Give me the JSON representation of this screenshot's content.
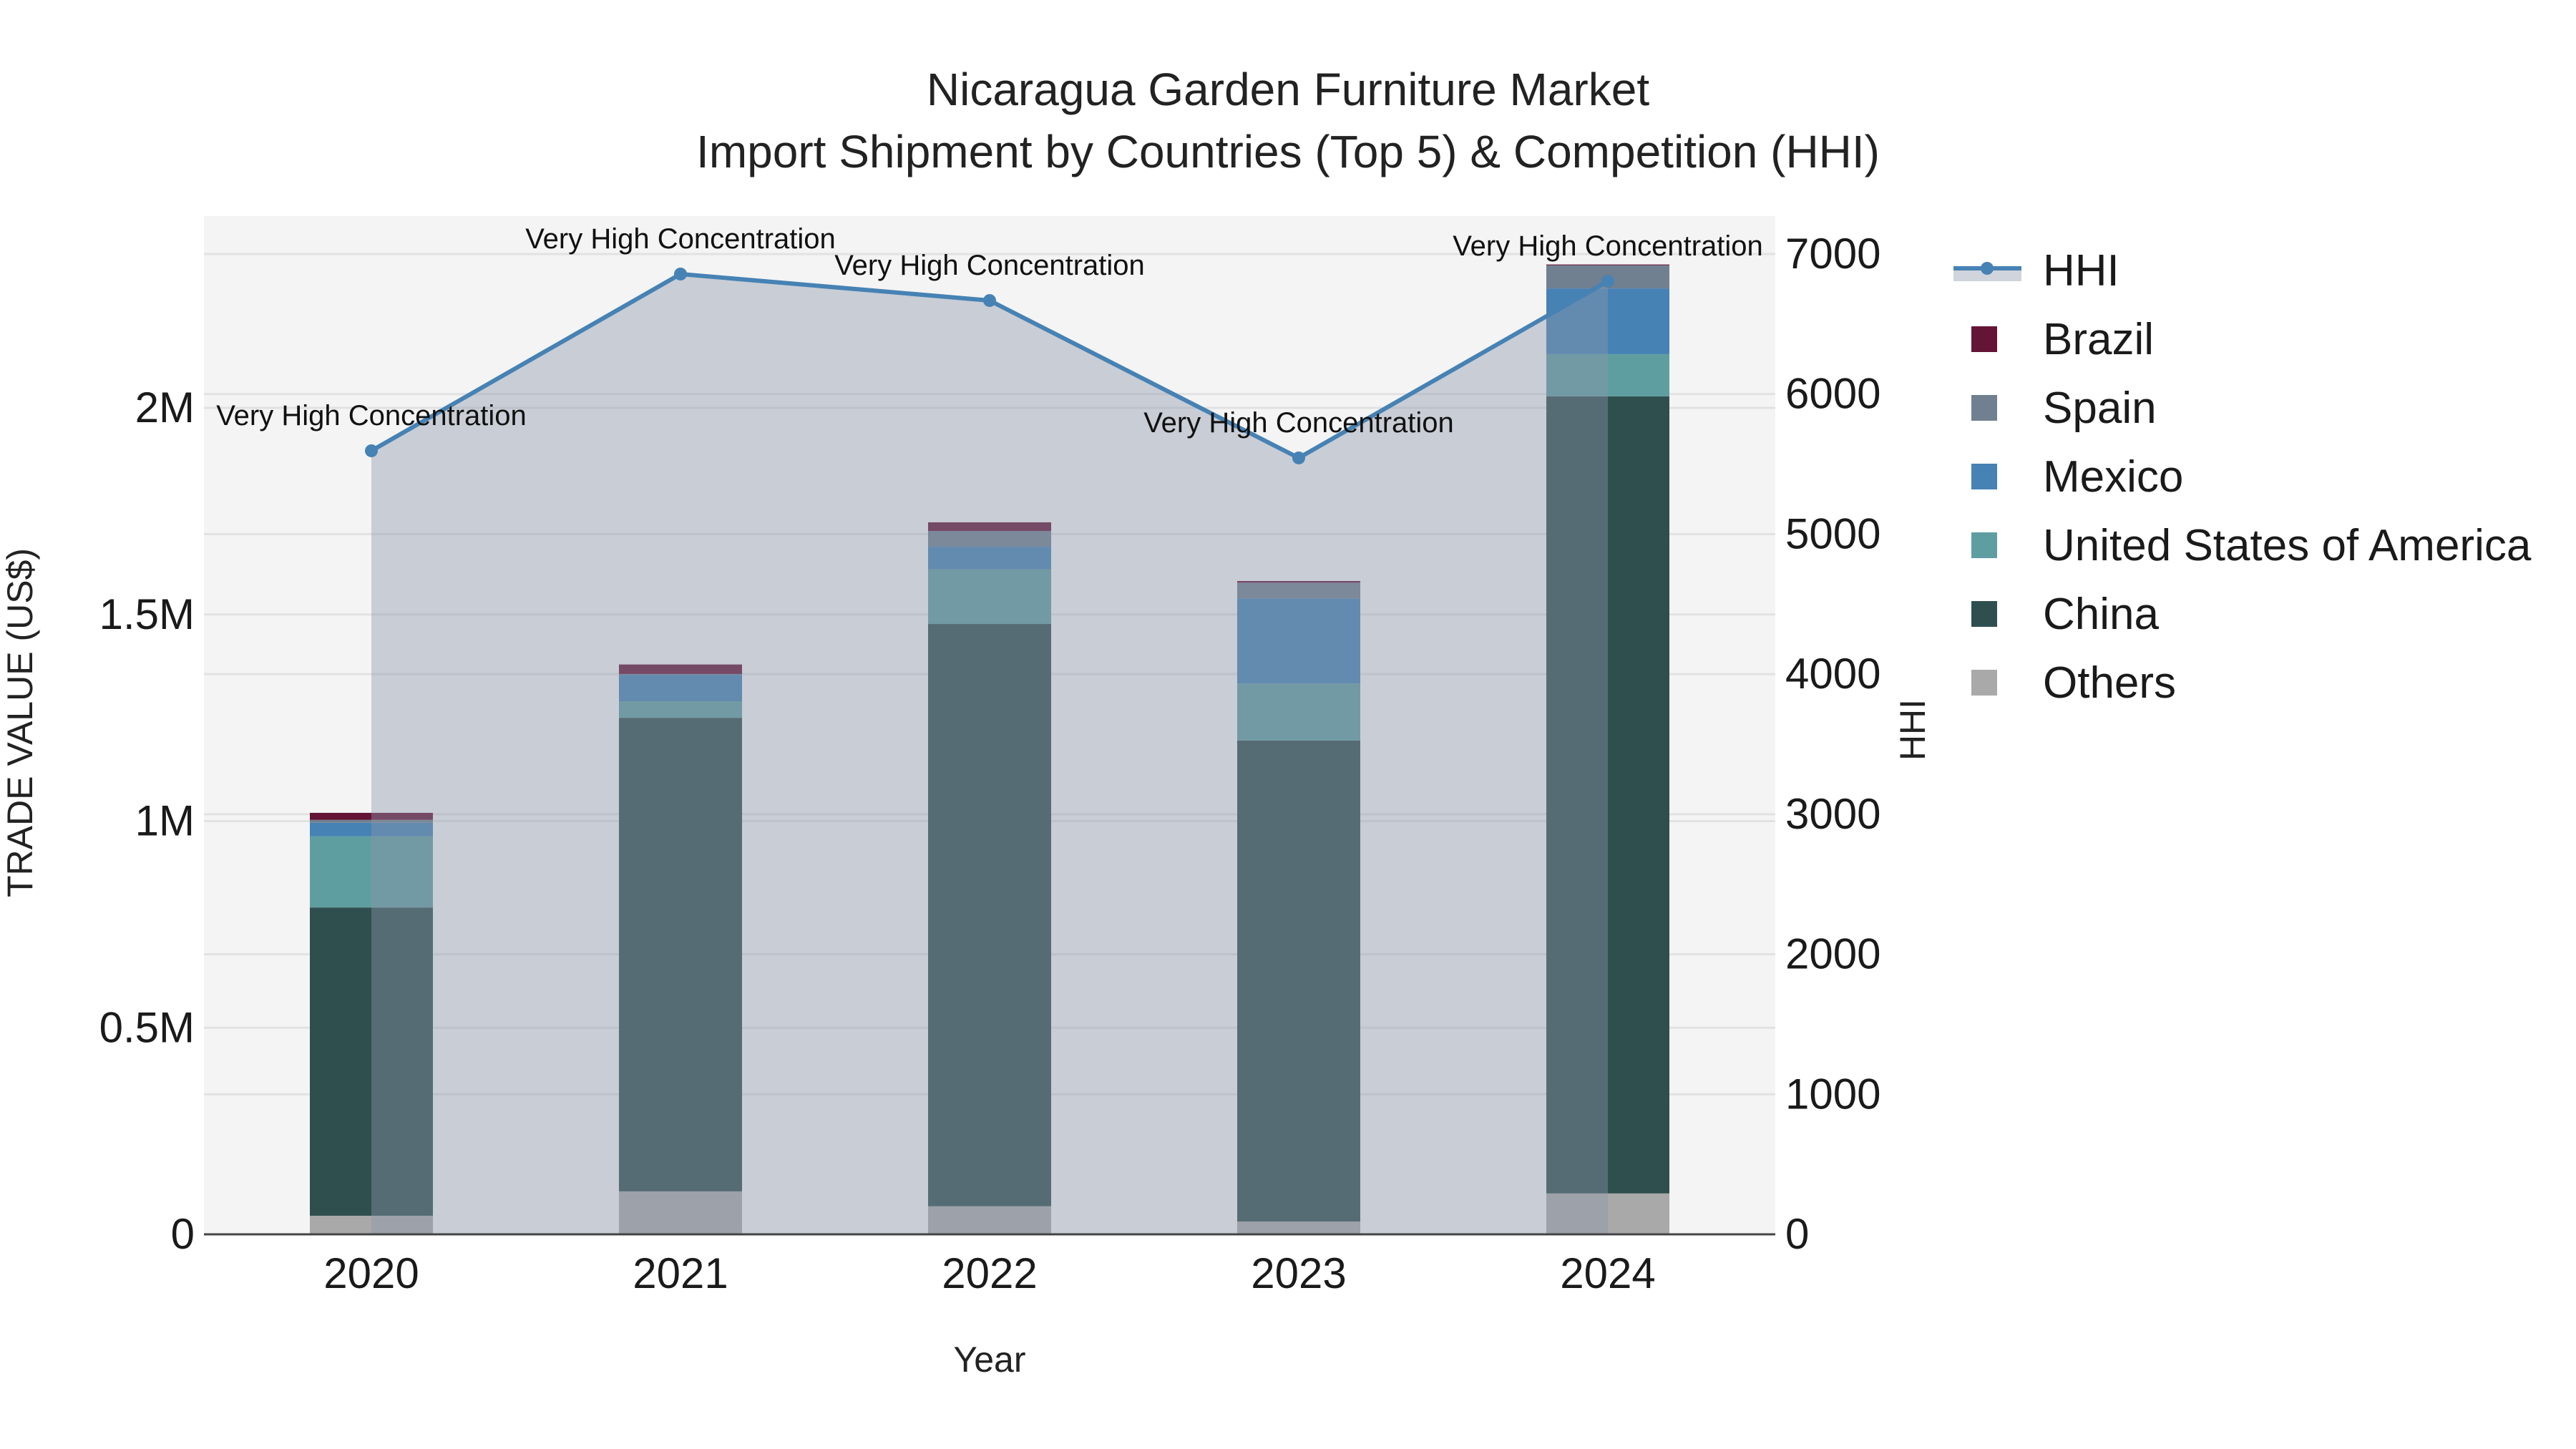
{
  "title": {
    "line1": "Nicaragua Garden Furniture Market",
    "line2": "Import Shipment by Countries (Top 5) & Competition (HHI)"
  },
  "axes": {
    "x_title": "Year",
    "y_left_title": "TRADE VALUE (US$)",
    "y_right_title": "HHI",
    "y_left_ticks": [
      "0",
      "0.5M",
      "1M",
      "1.5M",
      "2M"
    ],
    "y_right_ticks": [
      "0",
      "1000",
      "2000",
      "3000",
      "4000",
      "5000",
      "6000",
      "7000"
    ],
    "x_ticks": [
      "2020",
      "2021",
      "2022",
      "2023",
      "2024"
    ]
  },
  "legend": [
    {
      "name": "HHI",
      "type": "line",
      "color": "#4682b4"
    },
    {
      "name": "Brazil",
      "type": "bar",
      "color": "#641436"
    },
    {
      "name": "Spain",
      "type": "bar",
      "color": "#708090"
    },
    {
      "name": "Mexico",
      "type": "bar",
      "color": "#4682b4"
    },
    {
      "name": "United States of America",
      "type": "bar",
      "color": "#5f9ea0"
    },
    {
      "name": "China",
      "type": "bar",
      "color": "#2f4f4f"
    },
    {
      "name": "Others",
      "type": "bar",
      "color": "#a9a9a9"
    }
  ],
  "colors": {
    "plot_bg": "#f4f4f4",
    "hhi_fill": "#c8ccd4",
    "hhi_line": "#4682b4",
    "grid": "#e2e2e2",
    "axis_line": "#444444"
  },
  "chart_data": {
    "type": "bar",
    "stacked": true,
    "title": "Nicaragua Garden Furniture Market — Import Shipment by Countries (Top 5) & Competition (HHI)",
    "xlabel": "Year",
    "ylabel": "TRADE VALUE (US$)",
    "y2label": "HHI",
    "categories": [
      "2020",
      "2021",
      "2022",
      "2023",
      "2024"
    ],
    "ylim": [
      0,
      2400000
    ],
    "y2lim": [
      0,
      7200
    ],
    "series": [
      {
        "name": "Others",
        "color": "#a9a9a9",
        "values": [
          45000,
          104000,
          68000,
          31000,
          99000
        ]
      },
      {
        "name": "China",
        "color": "#2f4f4f",
        "values": [
          746000,
          1146000,
          1409000,
          1164000,
          1929000
        ]
      },
      {
        "name": "United States of America",
        "color": "#5f9ea0",
        "values": [
          172000,
          40000,
          132000,
          138000,
          102000
        ]
      },
      {
        "name": "Mexico",
        "color": "#4682b4",
        "values": [
          33000,
          64000,
          55000,
          206000,
          159000
        ]
      },
      {
        "name": "Spain",
        "color": "#708090",
        "values": [
          7000,
          2000,
          38000,
          38000,
          56000
        ]
      },
      {
        "name": "Brazil",
        "color": "#641436",
        "values": [
          17000,
          23000,
          21000,
          4000,
          2000
        ]
      }
    ],
    "line_series": {
      "name": "HHI",
      "axis": "right",
      "color": "#4682b4",
      "fill": "tozeroy",
      "values": [
        5595,
        6857,
        6668,
        5544,
        6806
      ],
      "annotations": [
        "Very High Concentration",
        "Very High Concentration",
        "Very High Concentration",
        "Very High Concentration",
        "Very High Concentration"
      ]
    },
    "grid": true,
    "legend_position": "right"
  }
}
